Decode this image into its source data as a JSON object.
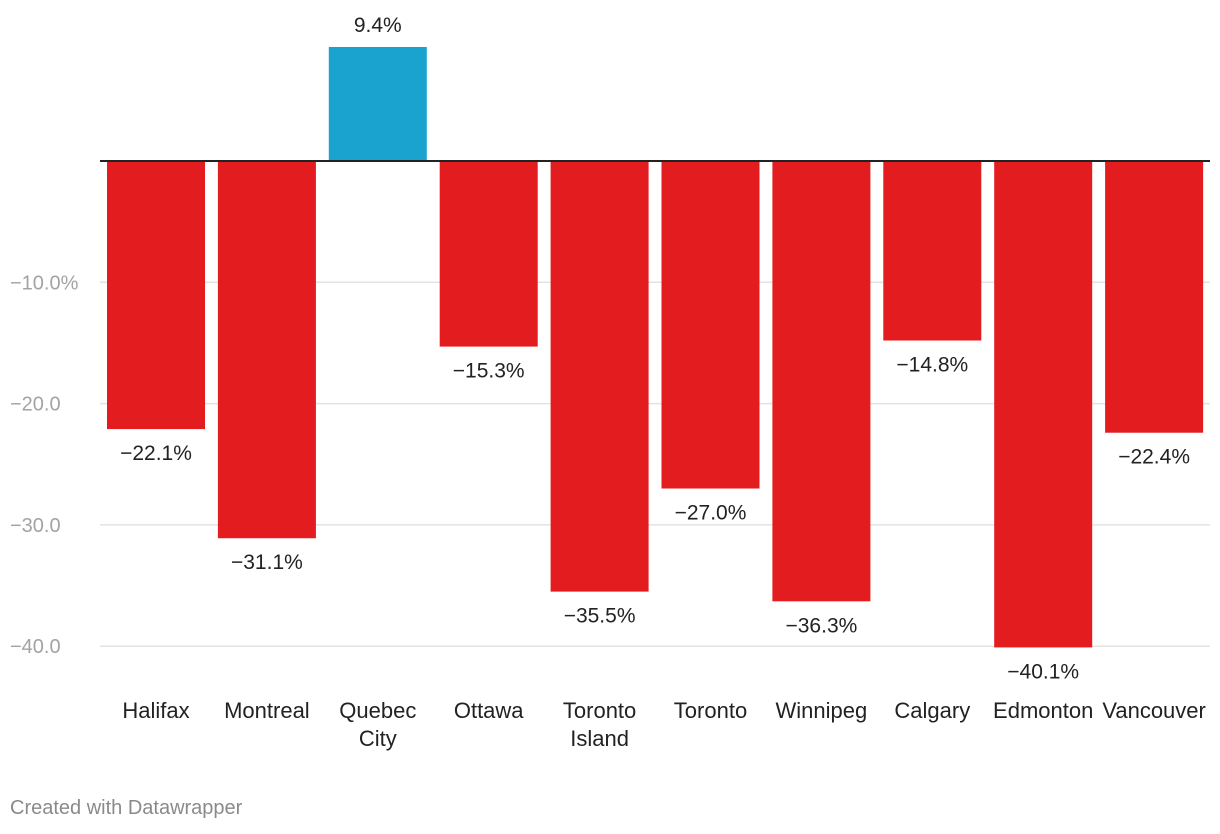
{
  "chart_data": {
    "type": "bar",
    "categories": [
      "Halifax",
      "Montreal",
      "Quebec City",
      "Ottawa",
      "Toronto Island",
      "Toronto",
      "Winnipeg",
      "Calgary",
      "Edmonton",
      "Vancouver"
    ],
    "category_lines": [
      [
        "Halifax"
      ],
      [
        "Montreal"
      ],
      [
        "Quebec",
        "City"
      ],
      [
        "Ottawa"
      ],
      [
        "Toronto",
        "Island"
      ],
      [
        "Toronto"
      ],
      [
        "Winnipeg"
      ],
      [
        "Calgary"
      ],
      [
        "Edmonton"
      ],
      [
        "Vancouver"
      ]
    ],
    "values": [
      -22.1,
      -31.1,
      9.4,
      -15.3,
      -35.5,
      -27.0,
      -36.3,
      -14.8,
      -40.1,
      -22.4
    ],
    "value_labels": [
      "−22.1%",
      "−31.1%",
      "9.4%",
      "−15.3%",
      "−35.5%",
      "−27.0%",
      "−36.3%",
      "−14.8%",
      "−40.1%",
      "−22.4%"
    ],
    "yticks": [
      -10,
      -20,
      -30,
      -40
    ],
    "ytick_labels": [
      "−10.0%",
      "−20.0",
      "−30.0",
      "−40.0"
    ],
    "ylim": [
      -42,
      10
    ],
    "grid": true,
    "colors": {
      "positive": "#19a3ce",
      "negative": "#e21c1f",
      "zero_line": "#222222",
      "grid": "#e3e3e3"
    }
  },
  "footer": {
    "credit": "Created with Datawrapper"
  }
}
